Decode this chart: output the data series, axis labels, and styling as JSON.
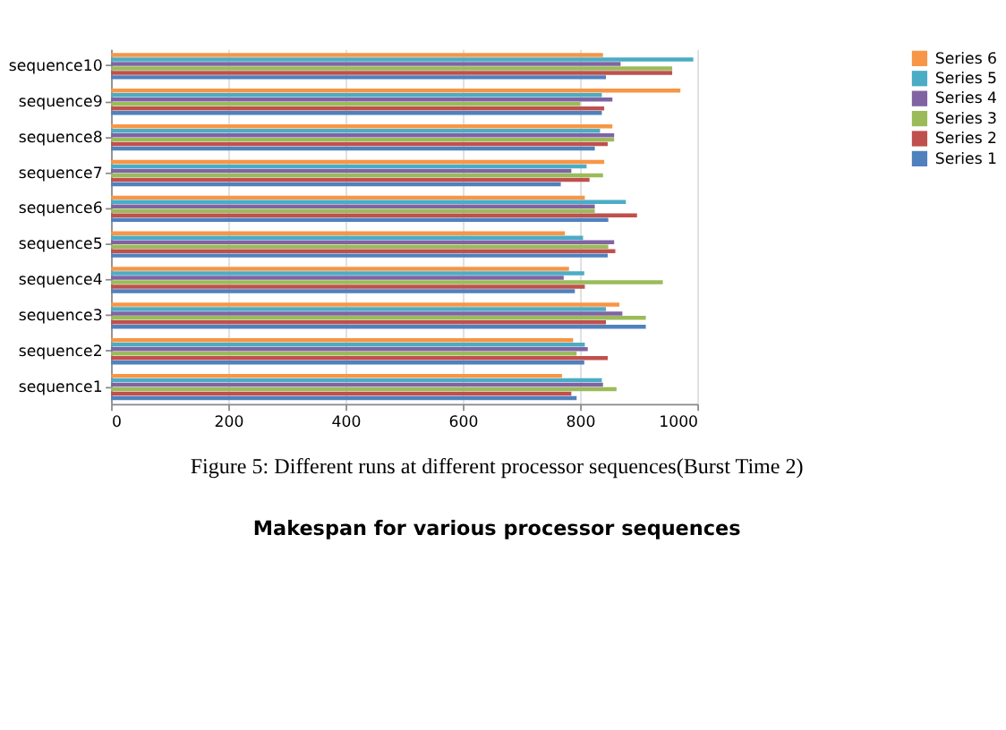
{
  "chart_data": {
    "type": "bar",
    "orientation": "horizontal",
    "categories": [
      "sequence10",
      "sequence9",
      "sequence8",
      "sequence7",
      "sequence6",
      "sequence5",
      "sequence4",
      "sequence3",
      "sequence2",
      "sequence1"
    ],
    "series": [
      {
        "name": "Series 1",
        "color": "#4f81bd",
        "values": [
          844,
          837,
          825,
          767,
          848,
          847,
          791,
          912,
          807,
          794
        ]
      },
      {
        "name": "Series 2",
        "color": "#c0504d",
        "values": [
          957,
          841,
          847,
          816,
          897,
          860,
          808,
          844,
          847,
          785
        ]
      },
      {
        "name": "Series 3",
        "color": "#9bbb59",
        "values": [
          957,
          800,
          858,
          839,
          825,
          848,
          941,
          912,
          794,
          862
        ]
      },
      {
        "name": "Series 4",
        "color": "#8064a2",
        "values": [
          869,
          855,
          858,
          785,
          825,
          858,
          772,
          872,
          813,
          839
        ]
      },
      {
        "name": "Series 5",
        "color": "#4bacc6",
        "values": [
          993,
          837,
          834,
          811,
          878,
          805,
          807,
          844,
          808,
          837
        ]
      },
      {
        "name": "Series 6",
        "color": "#f79646",
        "values": [
          839,
          971,
          855,
          841,
          808,
          774,
          781,
          867,
          788,
          769
        ]
      }
    ],
    "xlim": [
      0,
      1000
    ],
    "xticks": [
      0,
      200,
      400,
      600,
      800,
      1000
    ],
    "grid": "x",
    "legend": "right",
    "annotations": [
      "Figure 5: Different runs at different processor sequences(Burst Time 2)",
      "Makespan for various processor sequences"
    ]
  }
}
